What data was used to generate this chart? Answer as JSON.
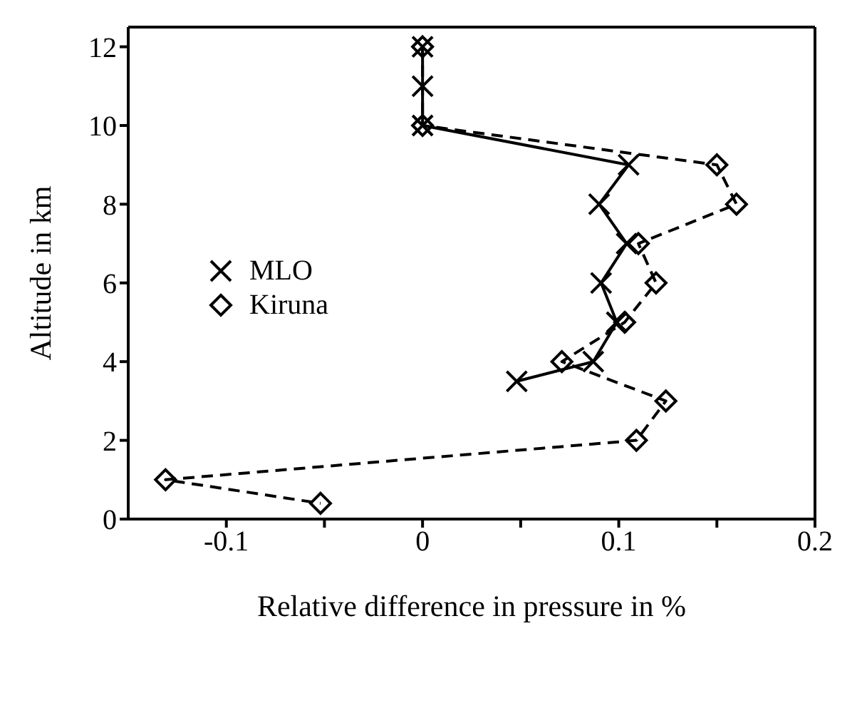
{
  "chart_data": {
    "type": "line",
    "xlabel": "Relative difference in pressure in %",
    "ylabel": "Altitude in km",
    "xlim": [
      -0.15,
      0.2
    ],
    "xticks": [
      -0.1,
      {
        "value": -0.05,
        "label": null
      },
      0,
      {
        "value": 0.05,
        "label": null
      },
      0.1,
      {
        "value": 0.15,
        "label": null
      },
      0.2
    ],
    "ylim": [
      0,
      12.5
    ],
    "yticks": [
      0,
      2,
      4,
      6,
      8,
      10,
      12
    ],
    "legend": "left",
    "grid": false,
    "series": [
      {
        "name": "MLO",
        "color": "#000000",
        "marker": "cross",
        "line_style": "solid",
        "x": [
          0,
          0,
          0,
          0.105,
          0.09,
          0.104,
          0.091,
          0.099,
          0.087,
          0.048
        ],
        "values": [
          12,
          11,
          10,
          9,
          8,
          7,
          6,
          5,
          4,
          3.5
        ]
      },
      {
        "name": "Kiruna",
        "color": "#000000",
        "marker": "diamond",
        "line_style": "dashed",
        "x": [
          0,
          0,
          0.15,
          0.16,
          0.11,
          0.119,
          0.103,
          0.071,
          0.124,
          0.109,
          -0.131,
          -0.052
        ],
        "values": [
          12,
          10,
          9,
          8,
          7,
          6,
          5,
          4,
          3,
          2,
          1,
          0.4
        ]
      }
    ]
  }
}
